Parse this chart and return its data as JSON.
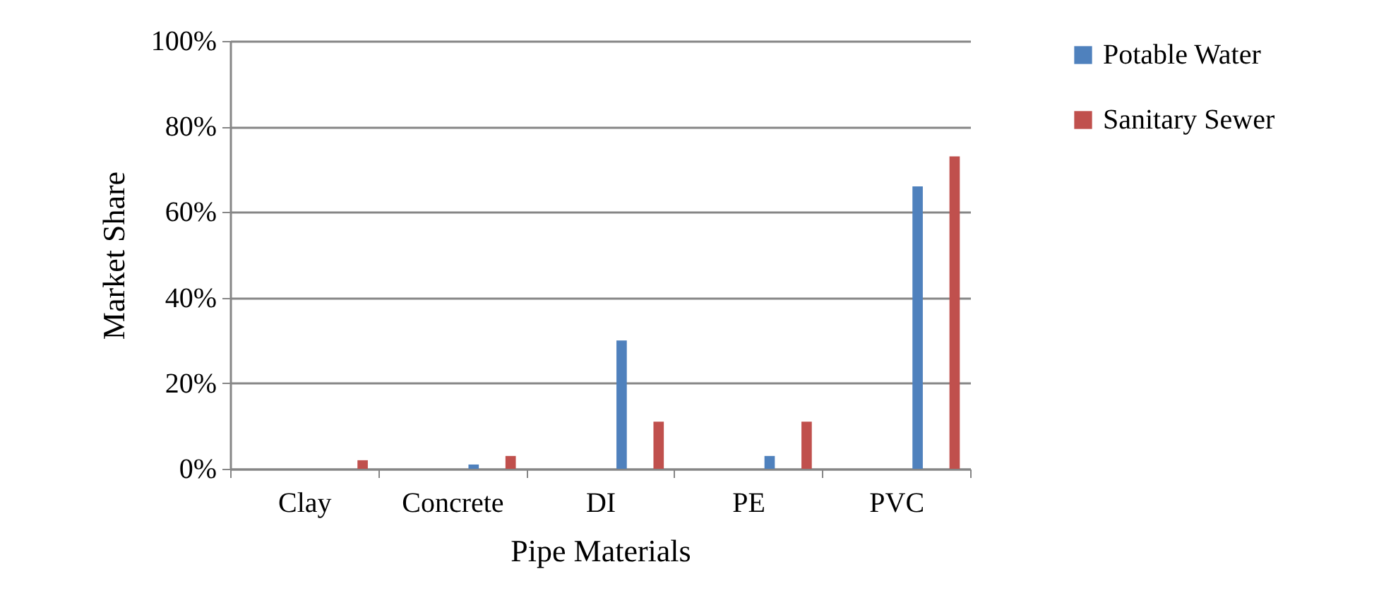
{
  "chart_data": {
    "type": "bar",
    "xlabel": "Pipe Materials",
    "ylabel": "Market Share",
    "categories": [
      "Clay",
      "Concrete",
      "DI",
      "PE",
      "PVC"
    ],
    "series": [
      {
        "name": "Potable Water",
        "color": "#4f81bd",
        "values": [
          0,
          1,
          30,
          3,
          66
        ]
      },
      {
        "name": "Sanitary Sewer",
        "color": "#c0504d",
        "values": [
          2,
          3,
          11,
          11,
          73
        ]
      }
    ],
    "ylim": [
      0,
      100
    ],
    "yticks": [
      {
        "value": 0,
        "label": "0%"
      },
      {
        "value": 20,
        "label": "20%"
      },
      {
        "value": 40,
        "label": "40%"
      },
      {
        "value": 60,
        "label": "60%"
      },
      {
        "value": 80,
        "label": "80%"
      },
      {
        "value": 100,
        "label": "100%"
      }
    ],
    "grid": "y",
    "legend": "right"
  }
}
